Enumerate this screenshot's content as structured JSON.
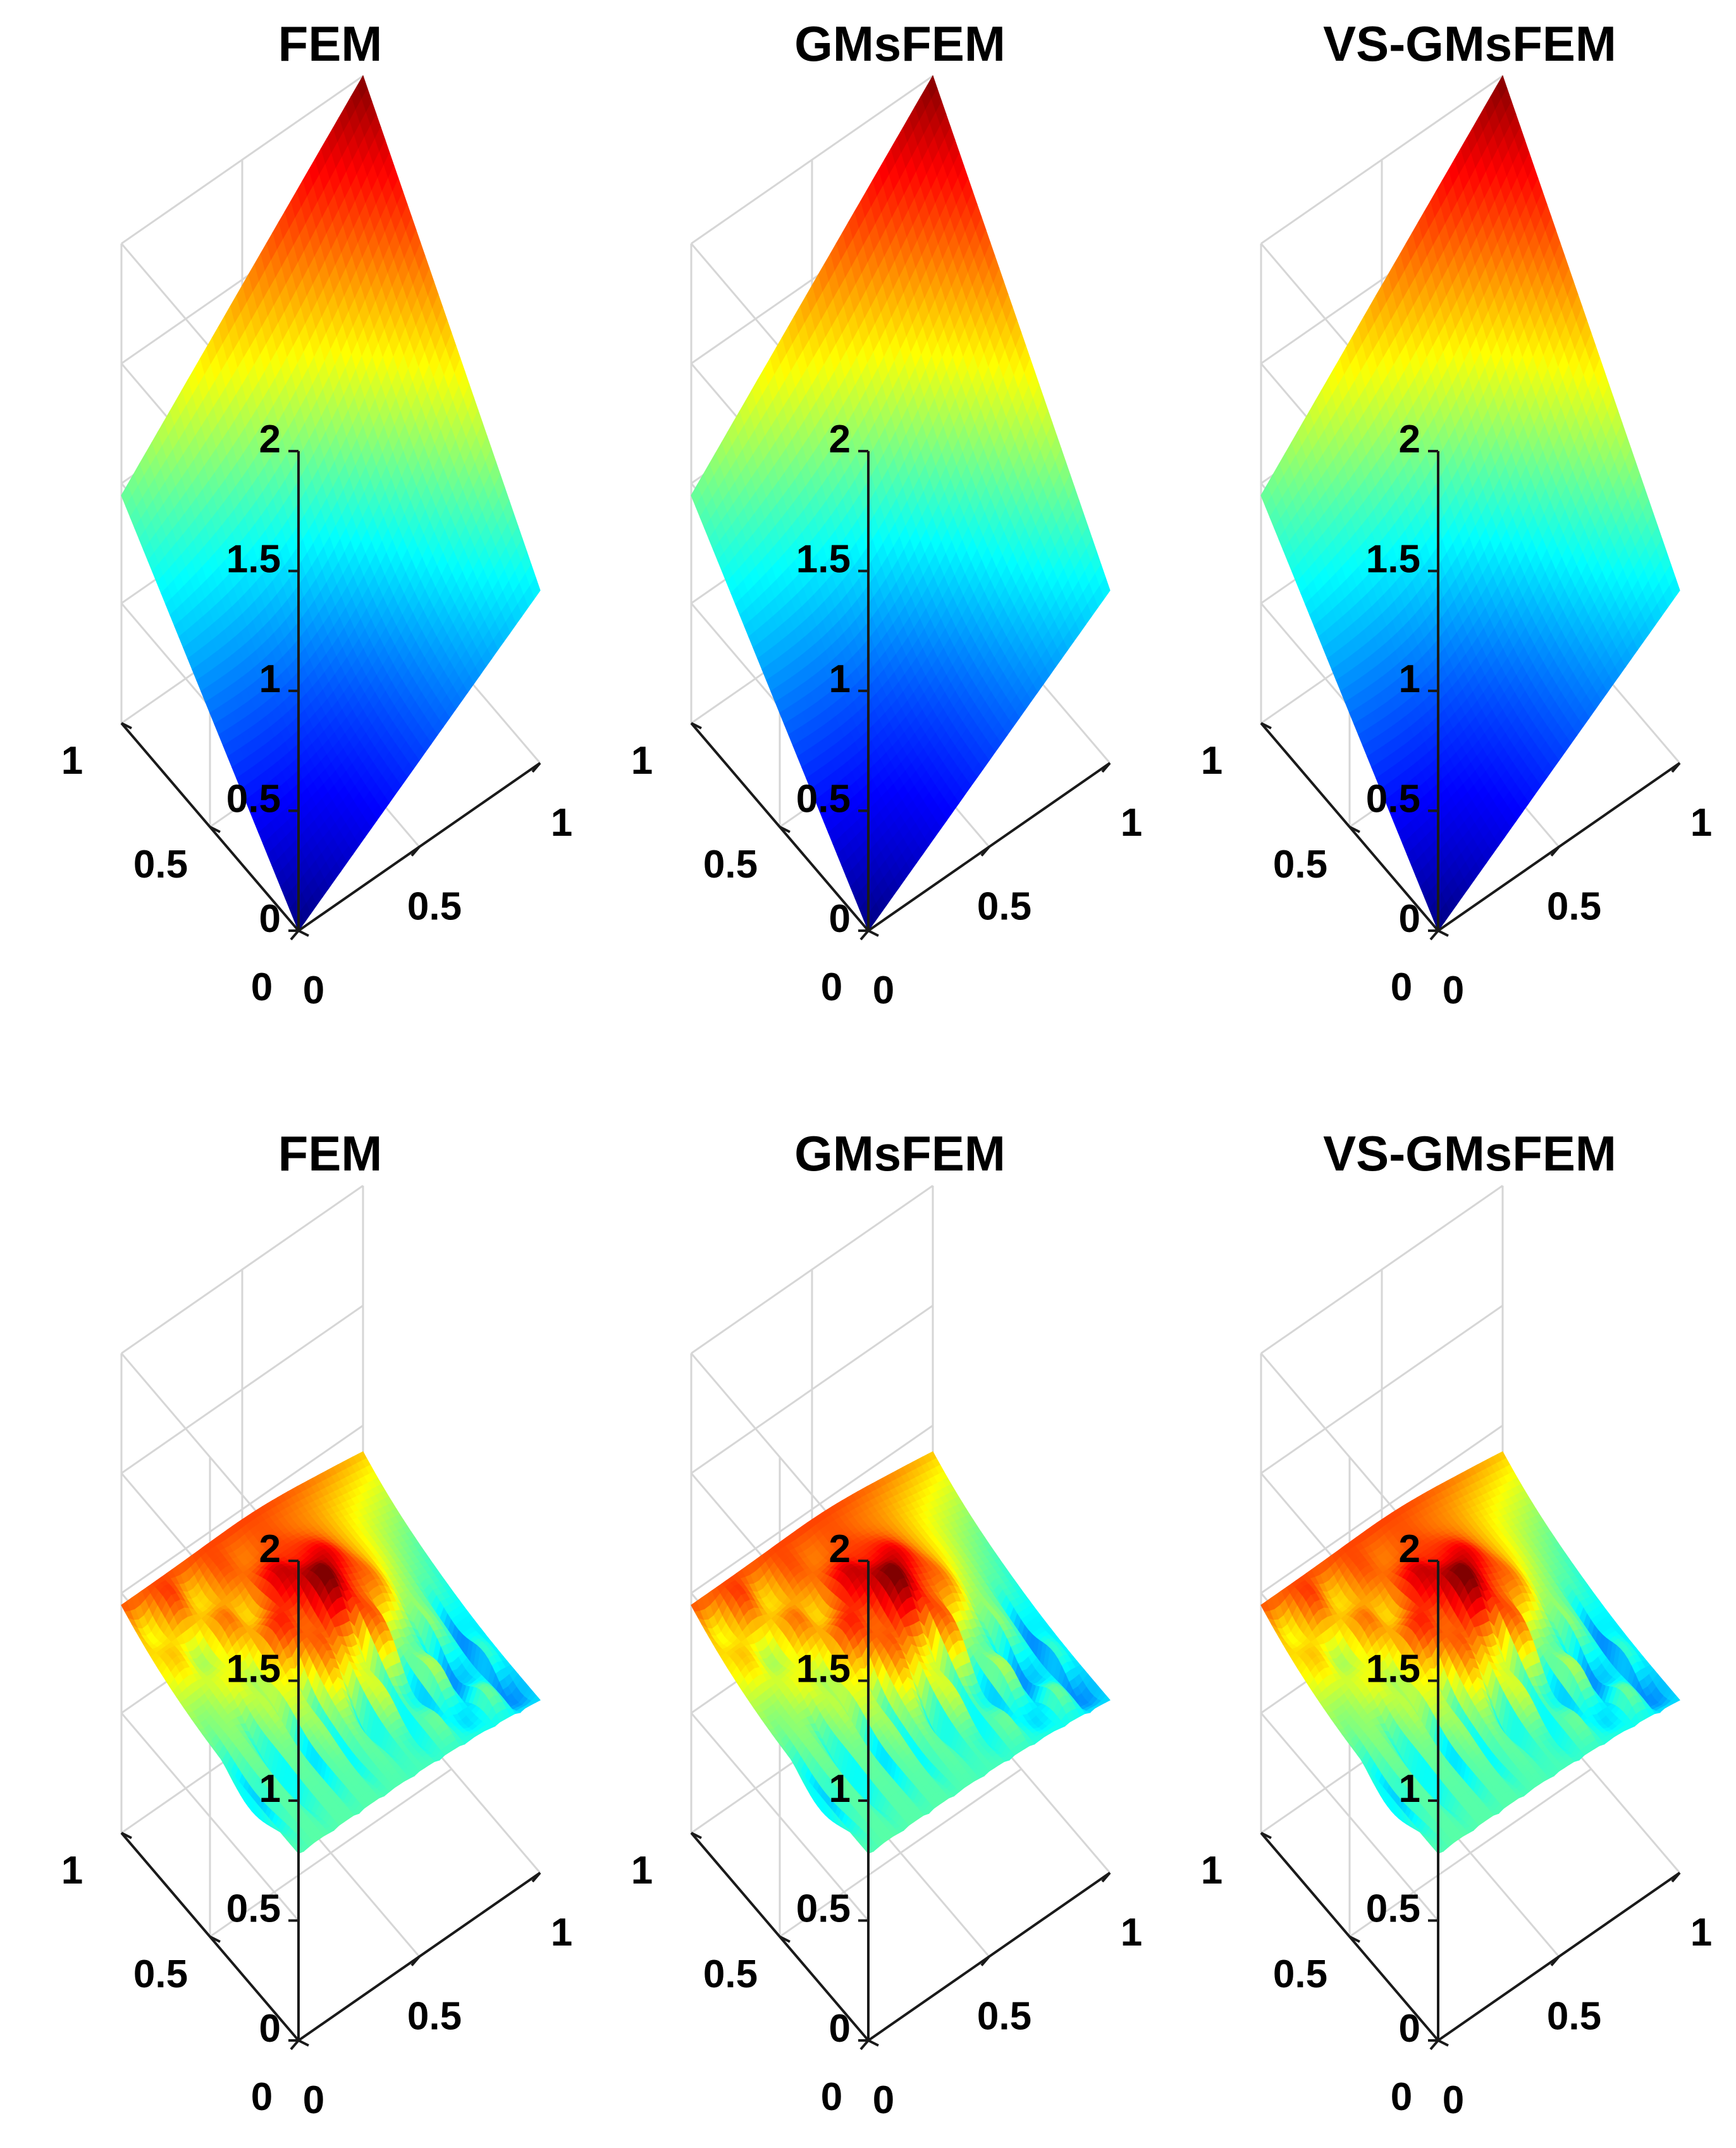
{
  "colors": {
    "background": "#ffffff",
    "axis": "#1a1a1a",
    "grid": "#d6d6d6",
    "colormap": "jet"
  },
  "chart_data": [
    {
      "type": "surface3d",
      "title": "FEM",
      "row": 1,
      "col": 1,
      "solution": "smooth",
      "xlabel": "",
      "ylabel": "",
      "zlabel": "",
      "xlim": [
        0,
        1
      ],
      "ylim": [
        0,
        1
      ],
      "zlim": [
        0,
        2
      ],
      "clim": [
        0,
        2
      ],
      "x_ticks": [
        "0",
        "0.5",
        "1"
      ],
      "y_ticks": [
        "0",
        "0.5",
        "1"
      ],
      "z_ticks": [
        "0",
        "0.5",
        "1",
        "1.5",
        "2"
      ],
      "corner_values": {
        "origin": 0.0,
        "x_end": 0.72,
        "y_end": 0.95,
        "far": 2.0
      },
      "grid": true
    },
    {
      "type": "surface3d",
      "title": "GMsFEM",
      "row": 1,
      "col": 2,
      "solution": "smooth",
      "xlabel": "",
      "ylabel": "",
      "zlabel": "",
      "xlim": [
        0,
        1
      ],
      "ylim": [
        0,
        1
      ],
      "zlim": [
        0,
        2
      ],
      "clim": [
        0,
        2
      ],
      "x_ticks": [
        "0",
        "0.5",
        "1"
      ],
      "y_ticks": [
        "0",
        "0.5",
        "1"
      ],
      "z_ticks": [
        "0",
        "0.5",
        "1",
        "1.5",
        "2"
      ],
      "corner_values": {
        "origin": 0.0,
        "x_end": 0.72,
        "y_end": 0.95,
        "far": 2.0
      },
      "grid": true
    },
    {
      "type": "surface3d",
      "title": "VS-GMsFEM",
      "row": 1,
      "col": 3,
      "solution": "smooth",
      "xlabel": "",
      "ylabel": "",
      "zlabel": "",
      "xlim": [
        0,
        1
      ],
      "ylim": [
        0,
        1
      ],
      "zlim": [
        0,
        2
      ],
      "clim": [
        0,
        2
      ],
      "x_ticks": [
        "0",
        "0.5",
        "1"
      ],
      "y_ticks": [
        "0",
        "0.5",
        "1"
      ],
      "z_ticks": [
        "0",
        "0.5",
        "1",
        "1.5",
        "2"
      ],
      "corner_values": {
        "origin": 0.0,
        "x_end": 0.72,
        "y_end": 0.95,
        "far": 2.0
      },
      "grid": true
    },
    {
      "type": "surface3d",
      "title": "FEM",
      "row": 2,
      "col": 1,
      "solution": "oscillatory",
      "xlabel": "",
      "ylabel": "",
      "zlabel": "",
      "xlim": [
        0,
        1
      ],
      "ylim": [
        0,
        1
      ],
      "zlim": [
        0,
        2
      ],
      "clim": [
        0.55,
        1.05
      ],
      "x_ticks": [
        "0",
        "0.5",
        "1"
      ],
      "y_ticks": [
        "0",
        "0.5",
        "1"
      ],
      "z_ticks": [
        "0",
        "0.5",
        "1",
        "1.5",
        "2"
      ],
      "corner_values": {
        "x_end": 0.72,
        "y_end": 0.95,
        "peak": 1.0,
        "min": 0.55
      },
      "grid": true
    },
    {
      "type": "surface3d",
      "title": "GMsFEM",
      "row": 2,
      "col": 2,
      "solution": "oscillatory",
      "xlabel": "",
      "ylabel": "",
      "zlabel": "",
      "xlim": [
        0,
        1
      ],
      "ylim": [
        0,
        1
      ],
      "zlim": [
        0,
        2
      ],
      "clim": [
        0.55,
        1.05
      ],
      "x_ticks": [
        "0",
        "0.5",
        "1"
      ],
      "y_ticks": [
        "0",
        "0.5",
        "1"
      ],
      "z_ticks": [
        "0",
        "0.5",
        "1",
        "1.5",
        "2"
      ],
      "corner_values": {
        "x_end": 0.72,
        "y_end": 0.95,
        "peak": 1.0,
        "min": 0.55
      },
      "grid": true
    },
    {
      "type": "surface3d",
      "title": "VS-GMsFEM",
      "row": 2,
      "col": 3,
      "solution": "oscillatory",
      "xlabel": "",
      "ylabel": "",
      "zlabel": "",
      "xlim": [
        0,
        1
      ],
      "ylim": [
        0,
        1
      ],
      "zlim": [
        0,
        2
      ],
      "clim": [
        0.55,
        1.05
      ],
      "x_ticks": [
        "0",
        "0.5",
        "1"
      ],
      "y_ticks": [
        "0",
        "0.5",
        "1"
      ],
      "z_ticks": [
        "0",
        "0.5",
        "1",
        "1.5",
        "2"
      ],
      "corner_values": {
        "x_end": 0.72,
        "y_end": 0.95,
        "peak": 1.0,
        "min": 0.55
      },
      "grid": true
    }
  ]
}
